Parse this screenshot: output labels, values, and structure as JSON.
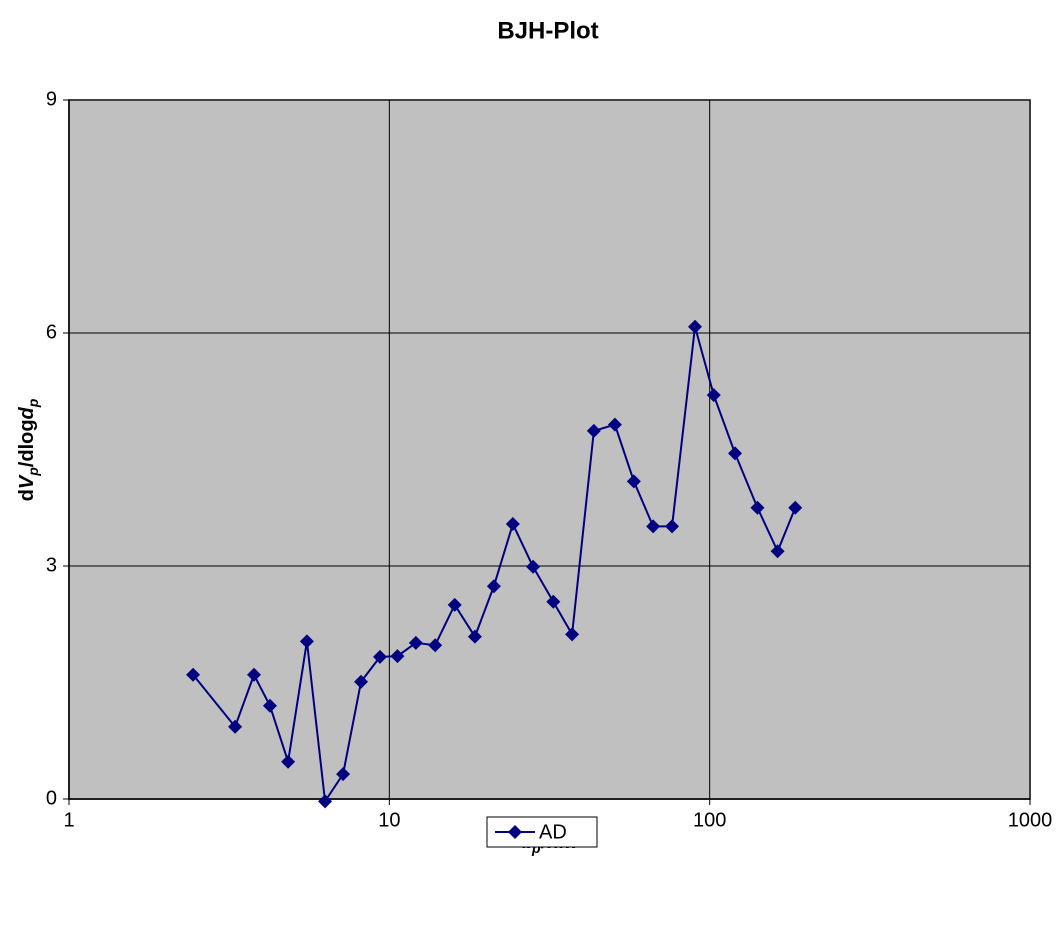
{
  "chart_data": {
    "type": "line",
    "title": "BJH-Plot",
    "xlabel_parts": [
      "d",
      "p",
      "/nm"
    ],
    "ylabel_parts": [
      "d",
      "V",
      "p",
      "/dlog",
      "d",
      "p"
    ],
    "x": [
      2.44,
      3.3,
      3.78,
      4.24,
      4.83,
      5.53,
      6.3,
      7.17,
      8.16,
      9.35,
      10.6,
      12.1,
      13.9,
      16.0,
      18.5,
      21.2,
      24.3,
      28.1,
      32.5,
      37.2,
      43.5,
      50.6,
      58.0,
      66.6,
      76.3,
      90.0,
      103,
      120,
      141,
      163,
      185
    ],
    "series": [
      {
        "name": "AD",
        "color": "#000080",
        "values": [
          1.6,
          0.93,
          1.6,
          1.2,
          0.48,
          2.03,
          -0.03,
          0.32,
          1.51,
          1.83,
          1.84,
          2.01,
          1.98,
          2.5,
          2.09,
          2.74,
          3.54,
          2.99,
          2.54,
          2.12,
          4.74,
          4.82,
          4.09,
          3.51,
          3.51,
          6.08,
          5.2,
          4.45,
          3.75,
          3.19,
          3.75
        ]
      }
    ],
    "xscale": "log",
    "xlim": [
      1,
      1000
    ],
    "xticks": [
      1,
      10,
      100,
      1000
    ],
    "ylim": [
      0,
      9
    ],
    "yticks": [
      0,
      3,
      6,
      9
    ],
    "grid": true,
    "legend": "bottom"
  }
}
